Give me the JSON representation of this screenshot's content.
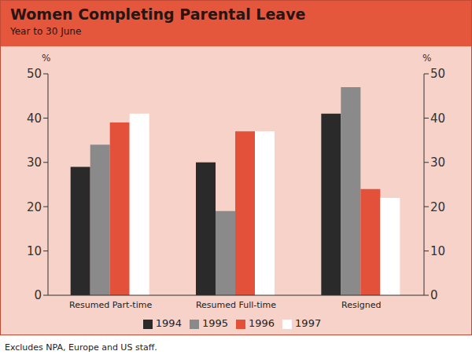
{
  "chart_data": {
    "type": "bar",
    "title": "Women Completing Parental Leave",
    "subtitle": "Year to 30 June",
    "y_label": "%",
    "note": "Excludes NPA, Europe and US staff.",
    "categories": [
      "Resumed Part-time",
      "Resumed Full-time",
      "Resigned"
    ],
    "series": [
      {
        "name": "1994",
        "color": "#2a2a2a",
        "values": [
          29,
          30,
          41
        ]
      },
      {
        "name": "1995",
        "color": "#8a8a8a",
        "values": [
          34,
          19,
          47
        ]
      },
      {
        "name": "1996",
        "color": "#e4513a",
        "values": [
          39,
          37,
          24
        ]
      },
      {
        "name": "1997",
        "color": "#ffffff",
        "values": [
          41,
          37,
          22
        ]
      }
    ],
    "ylim": [
      0,
      50
    ],
    "yticks": [
      0,
      10,
      20,
      30,
      40,
      50
    ],
    "grid": false,
    "legend": "bottom"
  }
}
